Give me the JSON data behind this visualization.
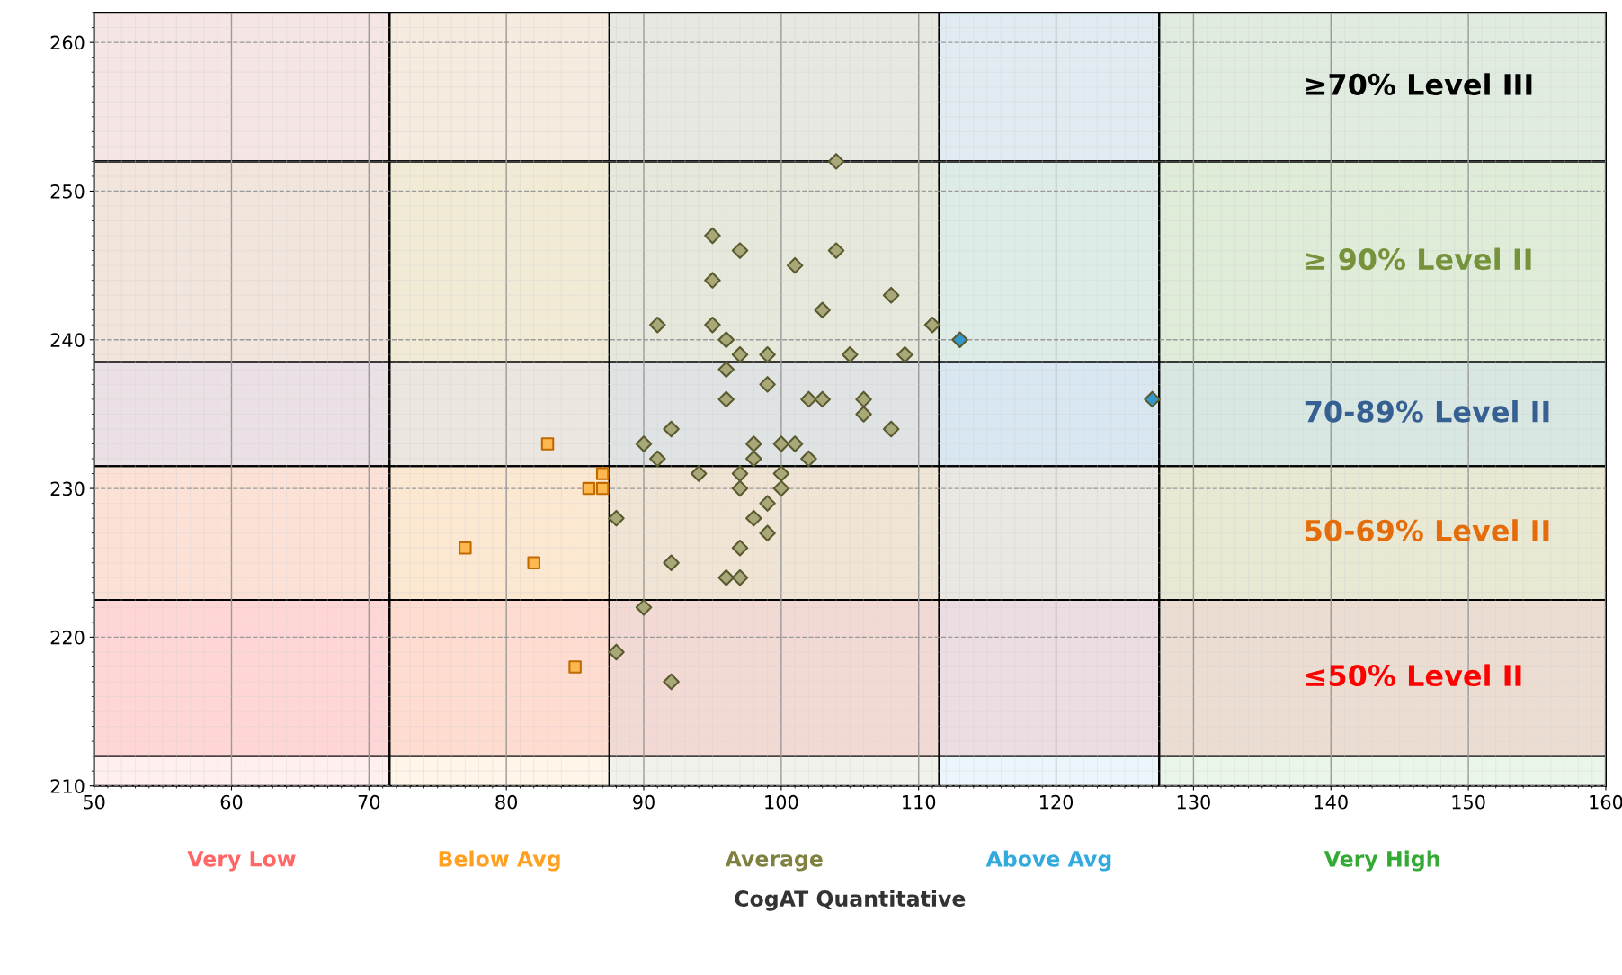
{
  "chart_data": {
    "type": "scatter",
    "xlabel": "CogAT Quantitative",
    "xlim": [
      50,
      160
    ],
    "ylim": [
      210,
      262
    ],
    "xticks": [
      50,
      60,
      70,
      80,
      90,
      100,
      110,
      120,
      130,
      140,
      150,
      160
    ],
    "yticks": [
      210,
      220,
      230,
      240,
      250,
      260
    ],
    "grid": true,
    "series": [
      {
        "color": "#a8a878",
        "marker": "diamond",
        "x": [
          104,
          95,
          97,
          101,
          104,
          95,
          108,
          103,
          91,
          95,
          111,
          96,
          97,
          99,
          105,
          109,
          96,
          99,
          96,
          102,
          103,
          106,
          106,
          108,
          92,
          90,
          98,
          100,
          101,
          91,
          98,
          102,
          94,
          97,
          100,
          97,
          100,
          99,
          88,
          98,
          99,
          97,
          92,
          96,
          97,
          90,
          88,
          92
        ],
        "values": [
          252,
          247,
          246,
          245,
          246,
          244,
          243,
          242,
          241,
          241,
          241,
          240,
          239,
          239,
          239,
          239,
          238,
          237,
          236,
          236,
          236,
          236,
          235,
          234,
          234,
          233,
          233,
          233,
          233,
          232,
          232,
          232,
          231,
          231,
          231,
          230,
          230,
          229,
          228,
          228,
          227,
          226,
          225,
          224,
          224,
          222,
          219,
          217
        ]
      },
      {
        "color": "#ffb84d",
        "marker": "square",
        "x": [
          83,
          87,
          86,
          87,
          77,
          82,
          85
        ],
        "values": [
          233,
          231,
          230,
          230,
          226,
          225,
          218
        ]
      },
      {
        "color": "#3399cc",
        "marker": "diamond",
        "x": [
          113,
          127
        ],
        "values": [
          240,
          236
        ]
      }
    ],
    "bands": [
      {
        "axis": "x",
        "from": 50,
        "to": 71.5,
        "label": "Very Low",
        "color": "#ff6666"
      },
      {
        "axis": "x",
        "from": 71.5,
        "to": 87.5,
        "label": "Below Avg",
        "color": "#ffa020"
      },
      {
        "axis": "x",
        "from": 87.5,
        "to": 111.5,
        "label": "Average",
        "color": "#808040"
      },
      {
        "axis": "x",
        "from": 111.5,
        "to": 127.5,
        "label": "Above Avg",
        "color": "#33aadd"
      },
      {
        "axis": "x",
        "from": 127.5,
        "to": 160,
        "label": "Very High",
        "color": "#33aa33"
      },
      {
        "axis": "y",
        "from": 252,
        "to": 262,
        "label": "≥70% Level III",
        "color": "#000000"
      },
      {
        "axis": "y",
        "from": 238.5,
        "to": 252,
        "label": "≥ 90% Level II",
        "color": "#76933c"
      },
      {
        "axis": "y",
        "from": 231.5,
        "to": 238.5,
        "label": "70-89% Level II",
        "color": "#376092"
      },
      {
        "axis": "y",
        "from": 222.5,
        "to": 231.5,
        "label": "50-69% Level II",
        "color": "#e46c0a"
      },
      {
        "axis": "y",
        "from": 212,
        "to": 222.5,
        "label": "≤50% Level II",
        "color": "#ff0000"
      }
    ]
  }
}
